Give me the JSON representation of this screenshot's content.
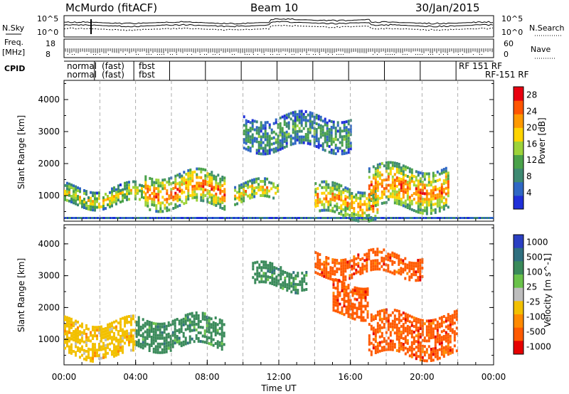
{
  "header": {
    "station": "McMurdo (fitACF)",
    "beam": "Beam 10",
    "date": "30/Jan/2015"
  },
  "status_panels": {
    "left_labels": [
      "N.Sky",
      "Freq.",
      "[MHz]",
      "CPID"
    ],
    "right_labels": [
      "N.Search",
      "Nave"
    ],
    "noise_ticks_left": [
      "10^5",
      "10^0"
    ],
    "noise_ticks_right": [
      "10^5",
      "10^0"
    ],
    "freq_ticks_left": [
      "18",
      "8"
    ],
    "nave_ticks_right": [
      "60",
      "0"
    ],
    "cpid_labels": [
      "normal",
      "normal",
      "(fast)",
      "(fast)",
      "fbst",
      "fbst",
      "RF 151 RF",
      "RF-151 RF"
    ]
  },
  "colors": {
    "power_scale": [
      "#1f2fd9",
      "#2f67c4",
      "#3e8a72",
      "#4aa24a",
      "#9dd33a",
      "#ffd400",
      "#ff9900",
      "#ff5500",
      "#e8000f"
    ],
    "velocity_scale": [
      "#2a3fc2",
      "#2f6f7f",
      "#3a8a5a",
      "#6ac24a",
      "#bdbdbd",
      "#f2c000",
      "#ff8a00",
      "#ff5a00",
      "#e60000"
    ]
  },
  "chart_data": [
    {
      "type": "heatmap",
      "title": "",
      "xlabel": "",
      "ylabel": "Slant Range [km]",
      "x_ticks": [
        "00:00",
        "04:00",
        "08:00",
        "12:00",
        "16:00",
        "20:00",
        "00:00"
      ],
      "y_ticks": [
        "1000",
        "2000",
        "3000",
        "4000"
      ],
      "ylim": [
        200,
        4600
      ],
      "colorbar": {
        "label": "Power [dB]",
        "ticks": [
          "4",
          "8",
          "12",
          "16",
          "20",
          "24",
          "28"
        ],
        "range": [
          0,
          30
        ]
      },
      "echo_regions": [
        {
          "t_start": 0.0,
          "t_end": 4.5,
          "range_low": 700,
          "range_high": 1300,
          "level": 14
        },
        {
          "t_start": 4.5,
          "t_end": 9.0,
          "range_low": 700,
          "range_high": 1700,
          "level": 20
        },
        {
          "t_start": 9.5,
          "t_end": 12.0,
          "range_low": 800,
          "range_high": 1400,
          "level": 16
        },
        {
          "t_start": 14.0,
          "t_end": 17.5,
          "range_low": 400,
          "range_high": 1300,
          "level": 18
        },
        {
          "t_start": 17.0,
          "t_end": 21.5,
          "range_low": 600,
          "range_high": 1900,
          "level": 20
        },
        {
          "t_start": 10.0,
          "t_end": 16.0,
          "range_low": 2500,
          "range_high": 3500,
          "level": 8
        }
      ]
    },
    {
      "type": "heatmap",
      "title": "",
      "xlabel": "Time UT",
      "ylabel": "Slant Range [km]",
      "x_ticks": [
        "00:00",
        "04:00",
        "08:00",
        "12:00",
        "16:00",
        "20:00",
        "00:00"
      ],
      "y_ticks": [
        "1000",
        "2000",
        "3000",
        "4000"
      ],
      "ylim": [
        200,
        4600
      ],
      "colorbar": {
        "label": "Velocity [m s^-1]",
        "ticks": [
          "1000",
          "500",
          "100",
          "25",
          "-25",
          "-100",
          "-500",
          "-1000"
        ],
        "range": [
          -1000,
          1000
        ]
      },
      "echo_regions": [
        {
          "t_start": 0.0,
          "t_end": 4.0,
          "range_low": 500,
          "range_high": 1600,
          "velocity": -100
        },
        {
          "t_start": 4.0,
          "t_end": 9.0,
          "range_low": 800,
          "range_high": 1700,
          "velocity": 100
        },
        {
          "t_start": 10.5,
          "t_end": 13.5,
          "range_low": 2600,
          "range_high": 3300,
          "velocity": 100
        },
        {
          "t_start": 15.0,
          "t_end": 17.0,
          "range_low": 1800,
          "range_high": 2800,
          "velocity": -500
        },
        {
          "t_start": 17.0,
          "t_end": 22.0,
          "range_low": 500,
          "range_high": 1800,
          "velocity": -500
        },
        {
          "t_start": 14.0,
          "t_end": 20.0,
          "range_low": 3000,
          "range_high": 3700,
          "velocity": -500
        }
      ]
    }
  ]
}
